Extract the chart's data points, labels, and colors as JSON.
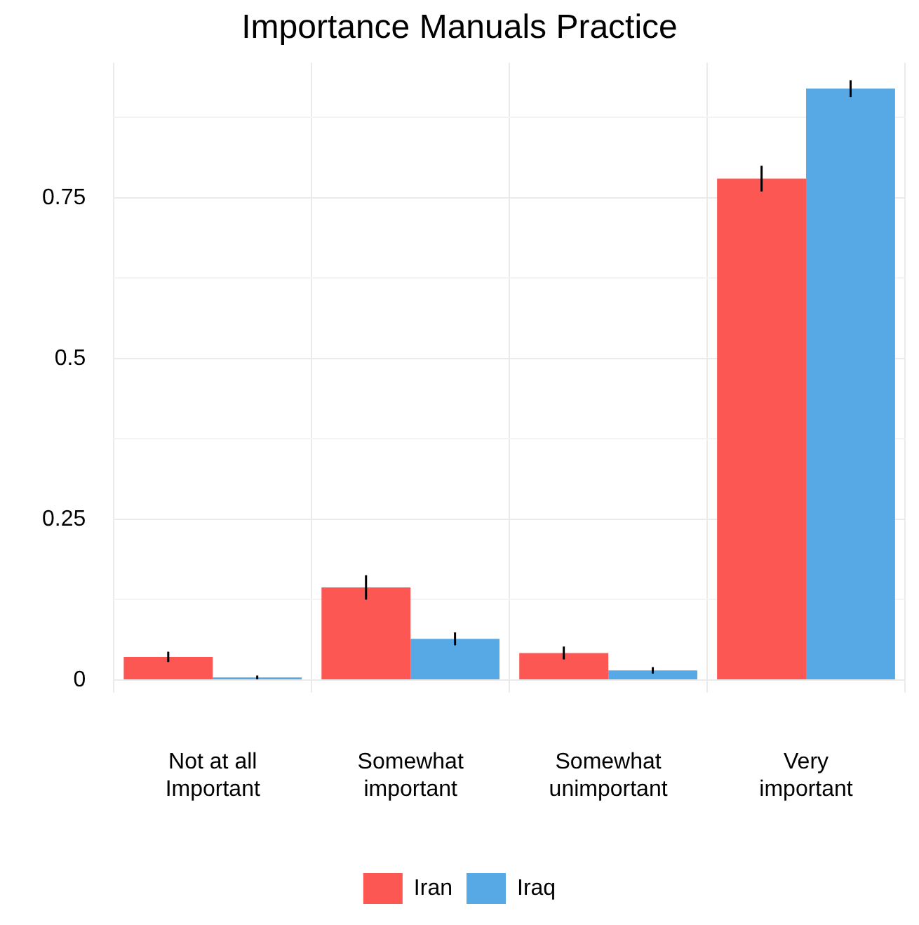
{
  "chart_data": {
    "type": "bar",
    "title": "Importance Manuals Practice",
    "categories": [
      "Not at all Important",
      "Somewhat important",
      "Somewhat unimportant",
      "Very important"
    ],
    "series": [
      {
        "name": "Iran",
        "color": "#fc5753",
        "values": [
          0.036,
          0.144,
          0.042,
          0.78
        ],
        "errors": [
          0.008,
          0.019,
          0.01,
          0.02
        ]
      },
      {
        "name": "Iraq",
        "color": "#56a9e4",
        "values": [
          0.004,
          0.064,
          0.015,
          0.92
        ],
        "errors": [
          0.003,
          0.01,
          0.005,
          0.013
        ]
      }
    ],
    "ylim": [
      -0.02,
      0.96
    ],
    "yticks": [
      0,
      {
        "value": 0.125,
        "label": null
      },
      {
        "value": 0.25,
        "label": "0.25"
      },
      {
        "value": 0.375,
        "label": null
      },
      {
        "value": 0.5,
        "label": "0.5"
      },
      {
        "value": 0.625,
        "label": null
      },
      {
        "value": 0.75,
        "label": "0.75"
      },
      {
        "value": 0.875,
        "label": null
      }
    ],
    "grid": true,
    "legend": "bottom"
  }
}
